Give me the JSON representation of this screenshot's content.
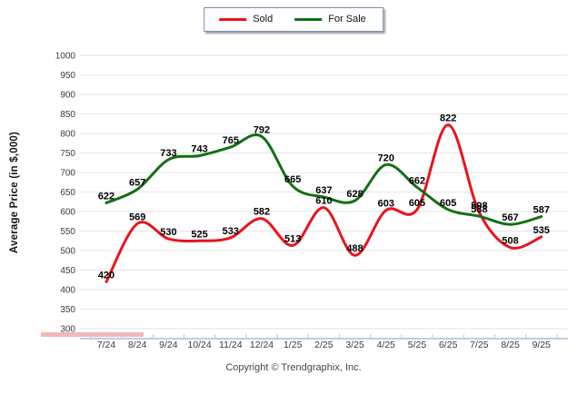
{
  "legend": {
    "items": [
      {
        "label": "Sold",
        "color": "#e8141e"
      },
      {
        "label": "For Sale",
        "color": "#136f13"
      }
    ]
  },
  "chart_data": {
    "type": "line",
    "categories": [
      "7/24",
      "8/24",
      "9/24",
      "10/24",
      "11/24",
      "12/24",
      "1/25",
      "2/25",
      "3/25",
      "4/25",
      "5/25",
      "6/25",
      "7/25",
      "8/25",
      "9/25"
    ],
    "series": [
      {
        "name": "Sold",
        "color": "#e8141e",
        "values": [
          420,
          569,
          530,
          525,
          533,
          582,
          513,
          610,
          488,
          603,
          605,
          822,
          598,
          508,
          535
        ]
      },
      {
        "name": "For Sale",
        "color": "#136f13",
        "values": [
          622,
          657,
          733,
          743,
          765,
          792,
          665,
          637,
          628,
          720,
          662,
          605,
          588,
          567,
          587
        ]
      }
    ],
    "title": "",
    "xlabel": "",
    "ylabel": "Average Price (in $,000)",
    "ylim": [
      300,
      1000
    ],
    "ytick_step": 50,
    "grid": true,
    "legend_position": "top-center"
  },
  "footer": {
    "copyright": "Copyright © Trendgraphix, Inc."
  },
  "colors": {
    "grid": "#e5e5e5",
    "axis_line": "#b9cfe4",
    "tick": "#c8c8c8",
    "tick_text": "#3b3b3b",
    "data_label": "#000000",
    "accent_bar": "#eda6a6"
  }
}
